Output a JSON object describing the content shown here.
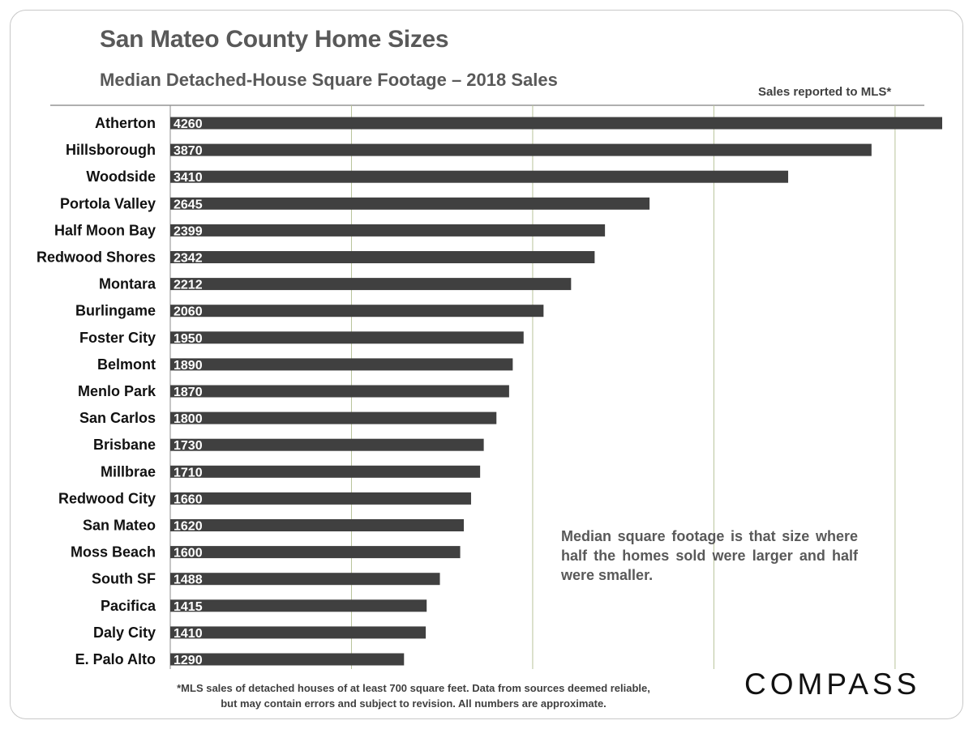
{
  "header": {
    "title": "San Mateo County Home Sizes",
    "subtitle": "Median Detached-House Square Footage – 2018 Sales",
    "source_note": "Sales reported to MLS*"
  },
  "annotation": "Median square footage is that size where half the homes sold were larger and half were smaller.",
  "footnote": {
    "line1": "*MLS sales of detached houses of at least 700 square feet. Data from sources deemed reliable,",
    "line2": "but may contain errors and subject to revision. All numbers are approximate."
  },
  "logo": "COMPASS",
  "colors": {
    "bar": "#404040",
    "grid": "#b9c39a",
    "text": "#595959"
  },
  "chart_data": {
    "type": "bar",
    "orientation": "horizontal",
    "categories": [
      "Atherton",
      "Hillsborough",
      "Woodside",
      "Portola Valley",
      "Half Moon Bay",
      "Redwood Shores",
      "Montara",
      "Burlingame",
      "Foster City",
      "Belmont",
      "Menlo Park",
      "San Carlos",
      "Brisbane",
      "Millbrae",
      "Redwood City",
      "San Mateo",
      "Moss Beach",
      "South SF",
      "Pacifica",
      "Daly City",
      "E. Palo Alto"
    ],
    "values": [
      4260,
      3870,
      3410,
      2645,
      2399,
      2342,
      2212,
      2060,
      1950,
      1890,
      1870,
      1800,
      1730,
      1710,
      1660,
      1620,
      1600,
      1488,
      1415,
      1410,
      1290
    ],
    "xlim": [
      0,
      4300
    ],
    "grid": true,
    "gridlines": [
      0,
      1000,
      2000,
      3000,
      4000
    ]
  }
}
